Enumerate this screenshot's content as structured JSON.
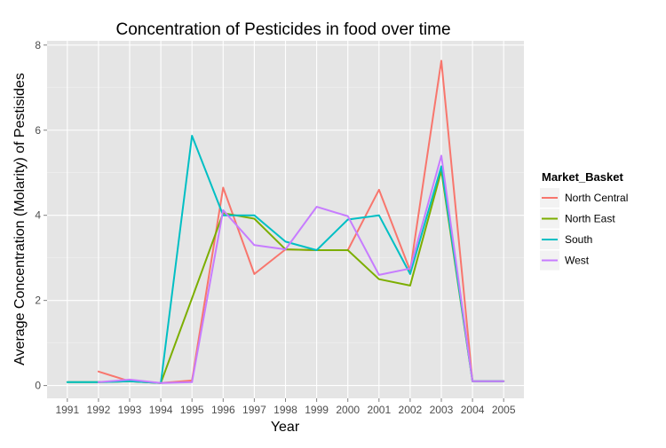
{
  "chart_data": {
    "type": "line",
    "title": "Concentration of Pesticides in food over time",
    "xlabel": "Year",
    "ylabel": "Average Concentration (Molarity) of Pestisides",
    "x": [
      1991,
      1992,
      1993,
      1994,
      1995,
      1996,
      1997,
      1998,
      1999,
      2000,
      2001,
      2002,
      2003,
      2004,
      2005
    ],
    "xlim": [
      1991,
      2005
    ],
    "ylim": [
      -0.3,
      8.1
    ],
    "yticks": [
      0,
      2,
      4,
      6,
      8
    ],
    "grid": true,
    "legend": {
      "title": "Market_Basket",
      "position": "right"
    },
    "series": [
      {
        "name": "North Central",
        "color": "#F8766D",
        "points": [
          [
            1992,
            0.33
          ],
          [
            1993,
            0.1
          ],
          [
            1994,
            0.06
          ],
          [
            1995,
            0.12
          ],
          [
            1996,
            4.65
          ],
          [
            1997,
            2.62
          ],
          [
            1998,
            3.2
          ],
          [
            1999,
            3.18
          ],
          [
            2000,
            3.18
          ],
          [
            2001,
            4.6
          ],
          [
            2002,
            2.7
          ],
          [
            2003,
            7.63
          ],
          [
            2004,
            0.1
          ],
          [
            2005,
            0.1
          ]
        ]
      },
      {
        "name": "North East",
        "color": "#7CAE00",
        "points": [
          [
            1991,
            0.08
          ],
          [
            1992,
            0.08
          ],
          [
            1993,
            0.1
          ],
          [
            1994,
            0.06
          ],
          [
            1995,
            2.05
          ],
          [
            1996,
            4.05
          ],
          [
            1997,
            3.92
          ],
          [
            1998,
            3.2
          ],
          [
            1999,
            3.18
          ],
          [
            2000,
            3.18
          ],
          [
            2001,
            2.5
          ],
          [
            2002,
            2.35
          ],
          [
            2003,
            5.05
          ],
          [
            2004,
            0.1
          ],
          [
            2005,
            0.1
          ]
        ]
      },
      {
        "name": "South",
        "color": "#00BFC4",
        "points": [
          [
            1991,
            0.08
          ],
          [
            1992,
            0.08
          ],
          [
            1993,
            0.1
          ],
          [
            1994,
            0.06
          ],
          [
            1995,
            5.87
          ],
          [
            1996,
            4.0
          ],
          [
            1997,
            4.0
          ],
          [
            1998,
            3.38
          ],
          [
            1999,
            3.18
          ],
          [
            2000,
            3.9
          ],
          [
            2001,
            4.0
          ],
          [
            2002,
            2.62
          ],
          [
            2003,
            5.15
          ],
          [
            2004,
            0.1
          ],
          [
            2005,
            0.1
          ]
        ]
      },
      {
        "name": "West",
        "color": "#C77CFF",
        "points": [
          [
            1992,
            0.08
          ],
          [
            1993,
            0.14
          ],
          [
            1994,
            0.06
          ],
          [
            1995,
            0.08
          ],
          [
            1996,
            4.12
          ],
          [
            1997,
            3.3
          ],
          [
            1998,
            3.2
          ],
          [
            1999,
            4.2
          ],
          [
            2000,
            3.98
          ],
          [
            2001,
            2.6
          ],
          [
            2002,
            2.75
          ],
          [
            2003,
            5.4
          ],
          [
            2004,
            0.1
          ],
          [
            2005,
            0.1
          ]
        ]
      }
    ]
  }
}
